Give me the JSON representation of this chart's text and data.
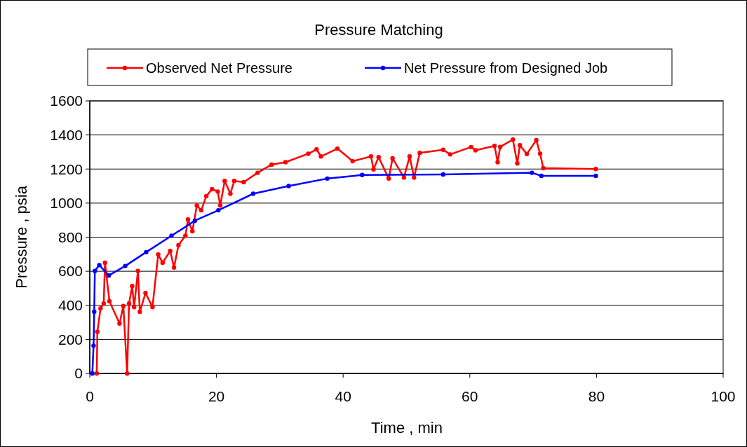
{
  "chart_data": {
    "type": "line",
    "title": "Pressure Matching",
    "xlabel": "Time , min",
    "ylabel": "Pressure , psia",
    "xlim": [
      0,
      100
    ],
    "xticks": [
      0,
      20,
      40,
      60,
      80,
      100
    ],
    "ylim": [
      0,
      1600
    ],
    "yticks": [
      0,
      200,
      400,
      600,
      800,
      1000,
      1200,
      1400,
      1600
    ],
    "grid": "y",
    "legend": "top",
    "marker": "circle",
    "line_style": "solid",
    "series": [
      {
        "name": "Observed Net Pressure",
        "color": "#ff0000",
        "x": [
          1.1,
          1.2,
          1.7,
          2.2,
          2.4,
          3.1,
          4.7,
          5.3,
          5.9,
          6.2,
          6.7,
          7.0,
          7.6,
          7.9,
          8.8,
          9.9,
          10.8,
          11.5,
          12.7,
          13.3,
          14.0,
          15.1,
          15.5,
          16.2,
          16.9,
          17.6,
          18.4,
          19.3,
          20.2,
          20.6,
          21.3,
          22.2,
          22.8,
          24.3,
          26.5,
          28.7,
          30.9,
          34.5,
          35.8,
          36.5,
          39.1,
          41.5,
          44.4,
          44.8,
          45.6,
          47.2,
          47.8,
          49.6,
          50.5,
          51.2,
          52.1,
          55.8,
          56.9,
          60.2,
          60.9,
          63.9,
          64.4,
          64.8,
          66.8,
          67.5,
          67.9,
          69.0,
          70.5,
          71.1,
          71.6,
          79.9
        ],
        "values": [
          0,
          245,
          382,
          410,
          650,
          424,
          293,
          396,
          0,
          410,
          513,
          390,
          602,
          362,
          472,
          390,
          698,
          650,
          719,
          622,
          753,
          808,
          904,
          835,
          986,
          958,
          1041,
          1082,
          1068,
          986,
          1130,
          1055,
          1130,
          1123,
          1178,
          1226,
          1240,
          1290,
          1315,
          1274,
          1320,
          1246,
          1274,
          1198,
          1270,
          1144,
          1263,
          1150,
          1274,
          1150,
          1295,
          1313,
          1286,
          1329,
          1310,
          1336,
          1240,
          1330,
          1373,
          1233,
          1340,
          1288,
          1370,
          1290,
          1205,
          1200
        ]
      },
      {
        "name": "Net Pressure from Designed Job",
        "color": "#0000ff",
        "x": [
          0.4,
          0.6,
          0.7,
          0.8,
          1.5,
          3.0,
          5.6,
          8.9,
          12.9,
          16.6,
          20.3,
          25.8,
          31.4,
          37.5,
          43,
          55.8,
          69.8,
          71.3,
          79.9
        ],
        "values": [
          0,
          163,
          362,
          602,
          636,
          575,
          631,
          712,
          808,
          897,
          958,
          1055,
          1100,
          1144,
          1165,
          1168,
          1178,
          1160,
          1160
        ]
      }
    ]
  }
}
